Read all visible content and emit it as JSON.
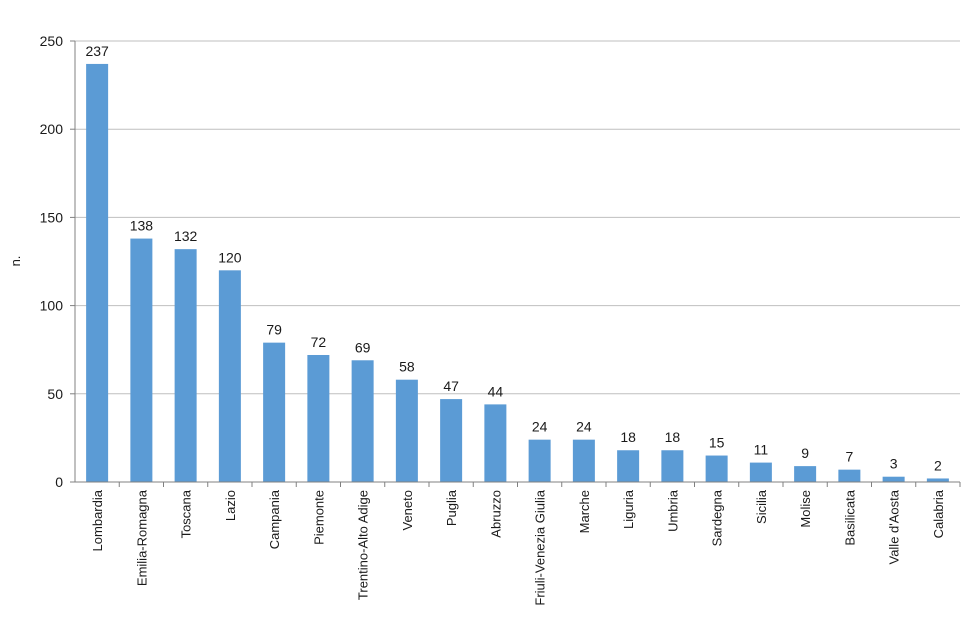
{
  "chart_data": {
    "type": "bar",
    "title": "",
    "xlabel": "",
    "ylabel": "n.",
    "ylim": [
      0,
      250
    ],
    "yticks": [
      "0",
      "50",
      "100",
      "150",
      "200",
      "250"
    ],
    "grid": true,
    "legend": "none",
    "bar_color": "#5b9bd5",
    "grid_color": "#bfbfbf",
    "categories": [
      "Lombardia",
      "Emilia-Romagna",
      "Toscana",
      "Lazio",
      "Campania",
      "Piemonte",
      "Trentino-Alto Adige",
      "Veneto",
      "Puglia",
      "Abruzzo",
      "Friuli-Venezia Giulia",
      "Marche",
      "Liguria",
      "Umbria",
      "Sardegna",
      "Sicilia",
      "Molise",
      "Basilicata",
      "Valle d'Aosta",
      "Calabria"
    ],
    "values": [
      237,
      138,
      132,
      120,
      79,
      72,
      69,
      58,
      47,
      44,
      24,
      24,
      18,
      18,
      15,
      11,
      9,
      7,
      3,
      2
    ]
  }
}
